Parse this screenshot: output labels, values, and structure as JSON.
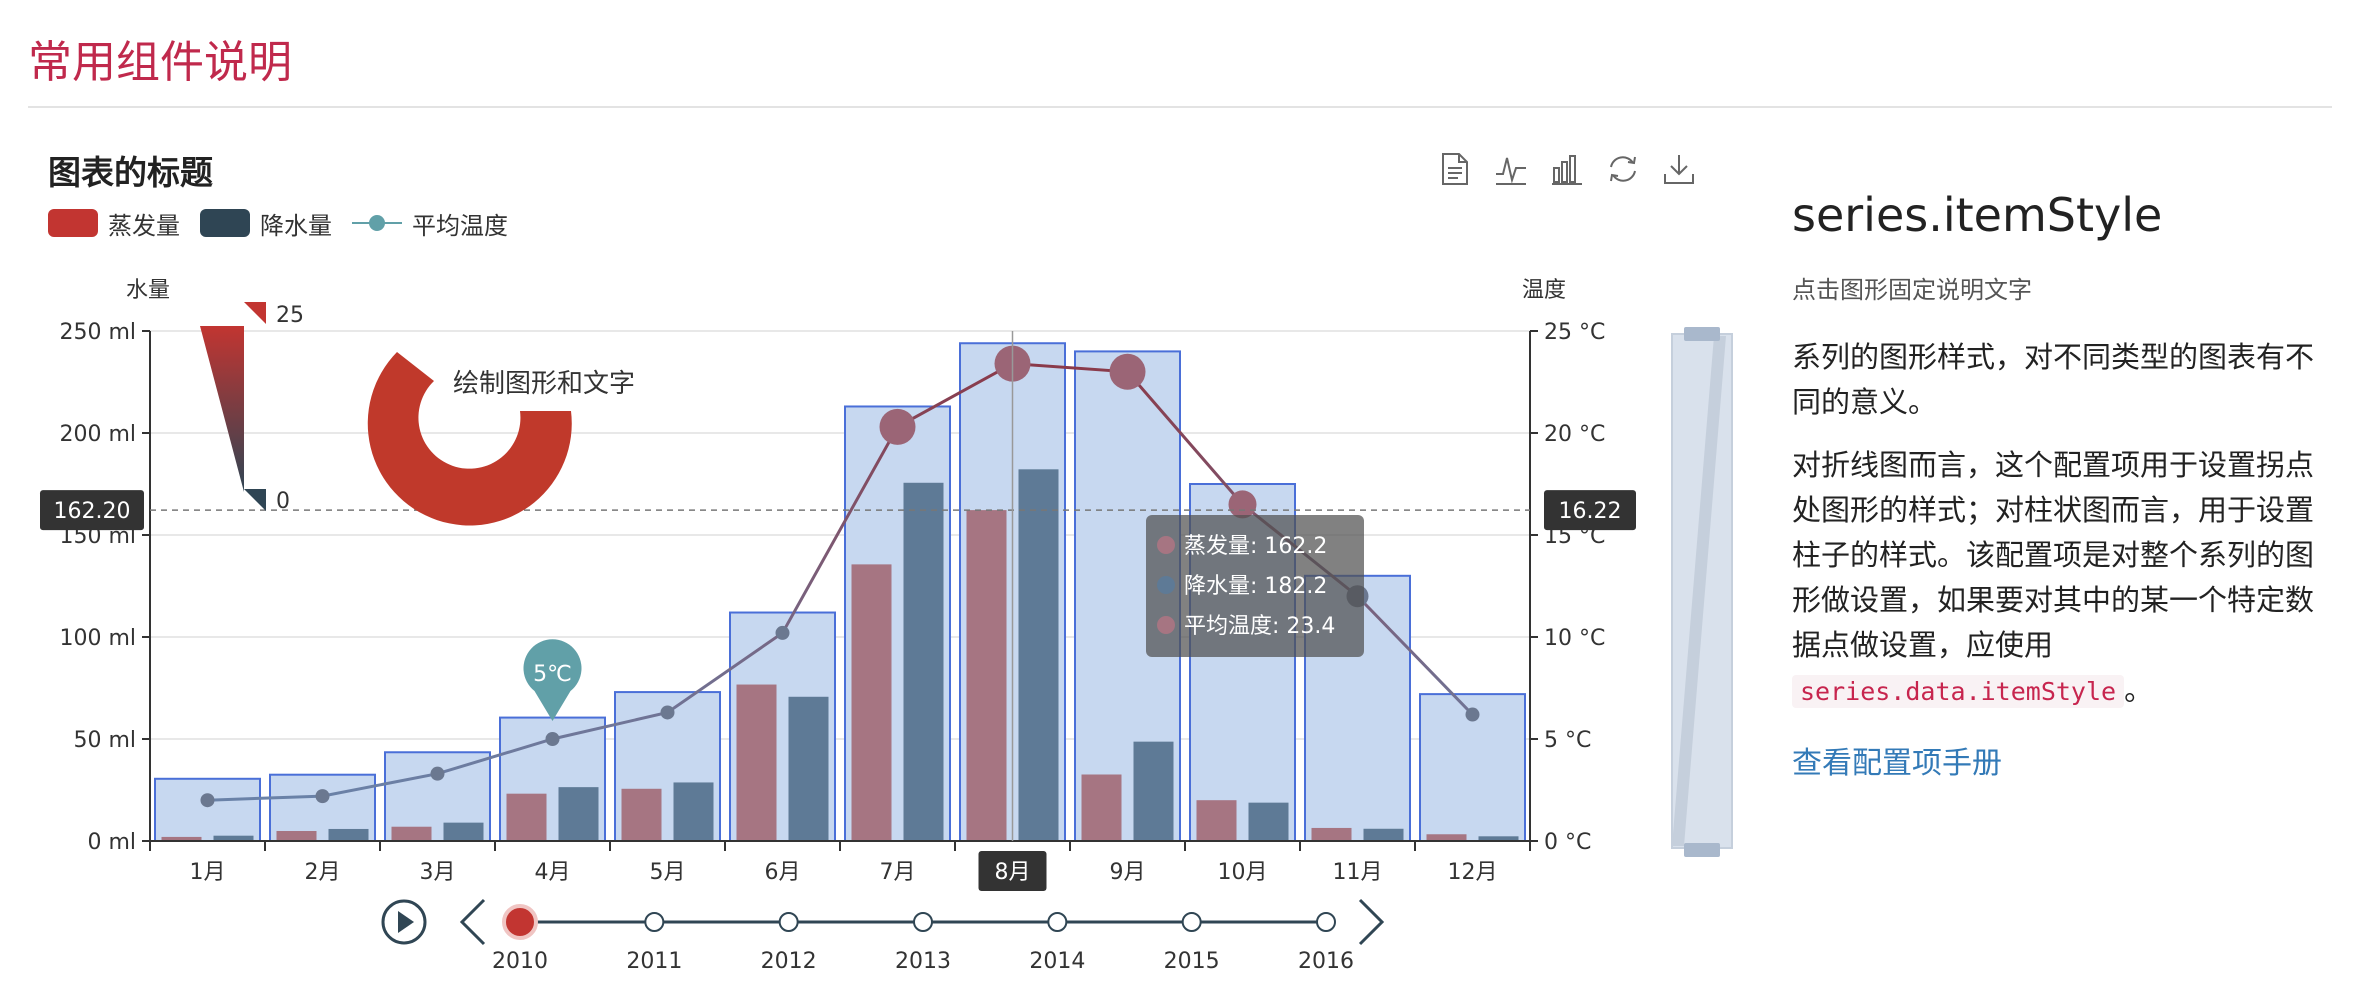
{
  "page": {
    "title": "常用组件说明"
  },
  "toolbox": {
    "icons": [
      "data-view-icon",
      "line-chart-icon",
      "bar-chart-icon",
      "restore-icon",
      "save-image-icon"
    ]
  },
  "side": {
    "heading": "series.itemStyle",
    "subtitle": "点击图形固定说明文字",
    "p1": "系列的图形样式，对不同类型的图表有不同的意义。",
    "p2_pre": "对折线图而言，这个配置项用于设置拐点处图形的样式；对柱状图而言，用于设置柱子的样式。该配置项是对整个系列的图形做设置，如果要对其中的某一个特定数据点做设置，应使用 ",
    "p2_code": "series.data.itemStyle",
    "p2_post": "。",
    "link": "查看配置项手册"
  },
  "chart_data": {
    "type": "bar",
    "title": "图表的标题",
    "categories": [
      "1月",
      "2月",
      "3月",
      "4月",
      "5月",
      "6月",
      "7月",
      "8月",
      "9月",
      "10月",
      "11月",
      "12月"
    ],
    "y_left": {
      "name": "水量",
      "unit": "ml",
      "range": [
        0,
        250
      ],
      "ticks": [
        0,
        50,
        100,
        150,
        200,
        250
      ]
    },
    "y_right": {
      "name": "温度",
      "unit": "°C",
      "range": [
        0,
        25
      ],
      "ticks": [
        0,
        5,
        10,
        15,
        20,
        25
      ]
    },
    "legend": [
      "蒸发量",
      "降水量",
      "平均温度"
    ],
    "legend_position": "top-left",
    "colors": {
      "evaporation": "#c23531",
      "precipitation": "#2f4554",
      "temperature": "#61a0a8",
      "background_bar": "#4a6fd8"
    },
    "background_bars": [
      30.5,
      32.5,
      43.5,
      60.5,
      73,
      112,
      213,
      244,
      240,
      175,
      130,
      72
    ],
    "series": [
      {
        "name": "蒸发量",
        "type": "bar",
        "values": [
          2.0,
          4.9,
          7.0,
          23.2,
          25.6,
          76.7,
          135.6,
          162.2,
          32.6,
          20.0,
          6.4,
          3.3
        ]
      },
      {
        "name": "降水量",
        "type": "bar",
        "values": [
          2.6,
          5.9,
          9.0,
          26.4,
          28.7,
          70.7,
          175.6,
          182.2,
          48.7,
          18.8,
          6.0,
          2.3
        ]
      },
      {
        "name": "平均温度",
        "type": "line",
        "axis": "right",
        "values": [
          2.0,
          2.2,
          3.3,
          5.0,
          6.3,
          10.2,
          20.3,
          23.4,
          23.0,
          16.5,
          12.0,
          6.2
        ]
      }
    ],
    "axis_pointer": {
      "left_label": "162.20",
      "right_label": "16.22",
      "category_label": "8月"
    },
    "mark_point": {
      "label": "5℃",
      "category": "4月"
    },
    "tooltip": {
      "lines": [
        "蒸发量: 162.2",
        "降水量: 182.2",
        "平均温度: 23.4"
      ]
    },
    "visual_map": {
      "max_label": "25",
      "min_label": "0"
    },
    "graphic": {
      "text": "绘制图形和文字"
    },
    "timeline": {
      "years": [
        "2010",
        "2011",
        "2012",
        "2013",
        "2014",
        "2015",
        "2016"
      ],
      "current": "2010"
    },
    "data_zoom": {
      "start_pct": 0,
      "end_pct": 100
    },
    "grid": true
  }
}
